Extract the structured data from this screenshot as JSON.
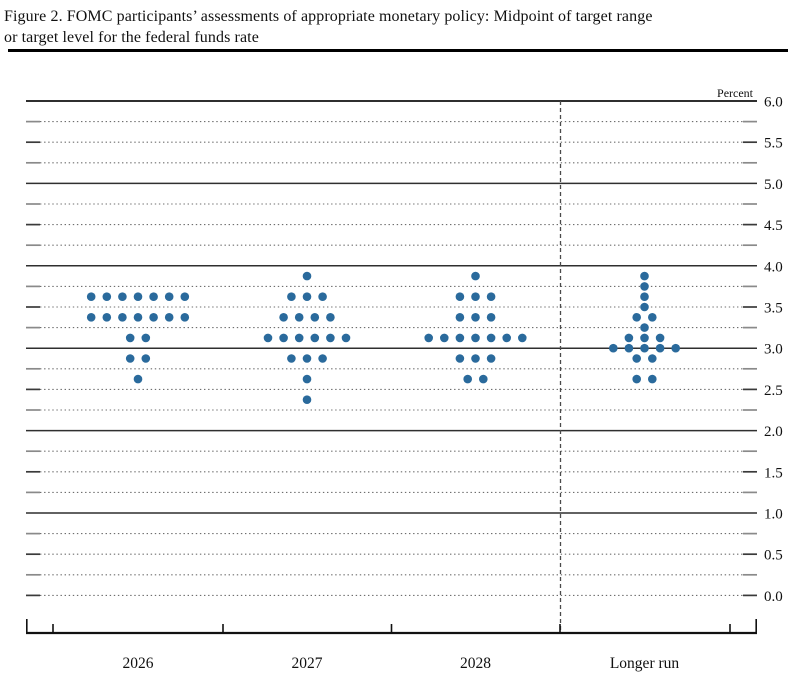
{
  "figure": {
    "title_lines": [
      "Figure 2. FOMC participants’ assessments of appropriate monetary policy: Midpoint of target range",
      "or target level for the federal funds rate"
    ]
  },
  "chart_data": {
    "type": "scatter",
    "subtype": "fomc-dot-plot",
    "title": "Figure 2. FOMC participants’ assessments of appropriate monetary policy: Midpoint of target range or target level for the federal funds rate",
    "unit_label": "Percent",
    "xlabel": "",
    "ylabel": "Percent",
    "ylim": [
      0.0,
      6.0
    ],
    "ytick_step": 0.25,
    "ylabel_step": 0.5,
    "ytick_labels": [
      "6.0",
      "5.5",
      "5.0",
      "4.5",
      "4.0",
      "3.5",
      "3.0",
      "2.5",
      "2.0",
      "1.5",
      "1.0",
      "0.5",
      "0.0"
    ],
    "grid": "dotted line at each quarter point, solid line at each whole percent",
    "legend_position": "none",
    "dot_color": "#2a6a9c",
    "categories": [
      "2026",
      "2027",
      "2028",
      "Longer run"
    ],
    "separator_before_category": "Longer run",
    "series": [
      {
        "category": "2026",
        "dots": [
          [
            3.625,
            7
          ],
          [
            3.375,
            7
          ],
          [
            3.125,
            2
          ],
          [
            2.875,
            2
          ],
          [
            2.625,
            1
          ]
        ]
      },
      {
        "category": "2027",
        "dots": [
          [
            3.875,
            1
          ],
          [
            3.625,
            3
          ],
          [
            3.375,
            4
          ],
          [
            3.125,
            6
          ],
          [
            2.875,
            3
          ],
          [
            2.625,
            1
          ],
          [
            2.375,
            1
          ]
        ]
      },
      {
        "category": "2028",
        "dots": [
          [
            3.875,
            1
          ],
          [
            3.625,
            3
          ],
          [
            3.375,
            3
          ],
          [
            3.125,
            7
          ],
          [
            2.875,
            3
          ],
          [
            2.625,
            2
          ]
        ]
      },
      {
        "category": "Longer run",
        "dots": [
          [
            3.875,
            1
          ],
          [
            3.75,
            1
          ],
          [
            3.625,
            1
          ],
          [
            3.5,
            1
          ],
          [
            3.375,
            2
          ],
          [
            3.25,
            1
          ],
          [
            3.125,
            3
          ],
          [
            3.0,
            5
          ],
          [
            2.875,
            2
          ],
          [
            2.625,
            2
          ]
        ]
      }
    ]
  }
}
